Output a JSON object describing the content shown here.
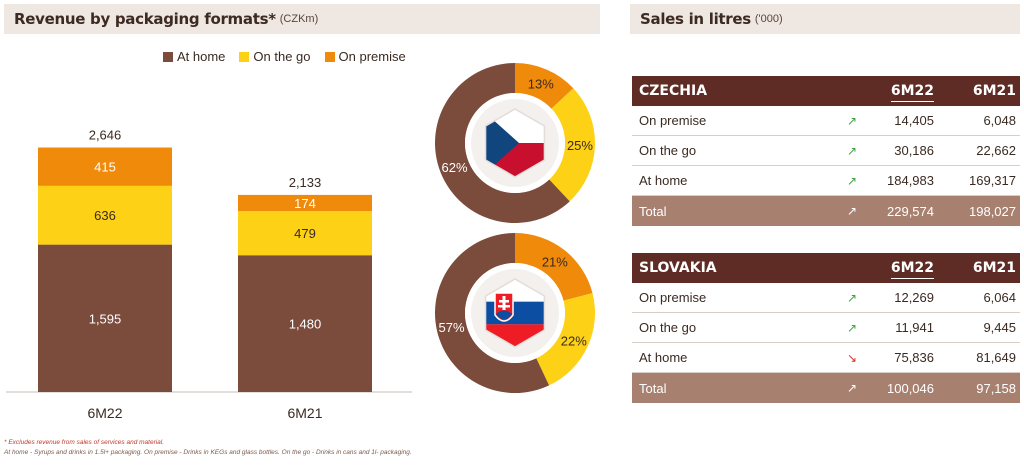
{
  "left_panel": {
    "title": "Revenue by packaging formats*",
    "unit": "(CZKm)"
  },
  "right_panel": {
    "title": "Sales in litres",
    "unit": "('000)"
  },
  "colors": {
    "at_home": "#7b4b3c",
    "on_the_go": "#fcd116",
    "on_premise": "#f08a0a",
    "table_head": "#5e2c24",
    "table_total": "#a8806f"
  },
  "legend": [
    {
      "label": "At home",
      "color": "#7b4b3c"
    },
    {
      "label": "On the go",
      "color": "#fcd116"
    },
    {
      "label": "On premise",
      "color": "#f08a0a"
    }
  ],
  "chart_data": [
    {
      "type": "bar",
      "stacked": true,
      "categories": [
        "6M22",
        "6M21"
      ],
      "series": [
        {
          "name": "At home",
          "values": [
            1595,
            1480
          ],
          "labels": [
            "1,595",
            "1,480"
          ]
        },
        {
          "name": "On the go",
          "values": [
            636,
            479
          ],
          "labels": [
            "636",
            "479"
          ]
        },
        {
          "name": "On premise",
          "values": [
            415,
            174
          ],
          "labels": [
            "415",
            "174"
          ]
        }
      ],
      "totals": [
        2646,
        2133
      ],
      "total_labels": [
        "2,646",
        "2,133"
      ]
    },
    {
      "type": "pie",
      "country": "Czechia",
      "slices": [
        {
          "name": "On premise",
          "value": 13,
          "label": "13%"
        },
        {
          "name": "On the go",
          "value": 25,
          "label": "25%"
        },
        {
          "name": "At home",
          "value": 62,
          "label": "62%"
        }
      ]
    },
    {
      "type": "pie",
      "country": "Slovakia",
      "slices": [
        {
          "name": "On premise",
          "value": 21,
          "label": "21%"
        },
        {
          "name": "On the go",
          "value": 22,
          "label": "22%"
        },
        {
          "name": "At home",
          "value": 57,
          "label": "57%"
        }
      ]
    }
  ],
  "tables": {
    "czechia": {
      "title": "CZECHIA",
      "col1": "6M22",
      "col2": "6M21",
      "rows": [
        {
          "label": "On premise",
          "trend": "up",
          "v1": "14,405",
          "v2": "6,048"
        },
        {
          "label": "On the go",
          "trend": "up",
          "v1": "30,186",
          "v2": "22,662"
        },
        {
          "label": "At home",
          "trend": "up",
          "v1": "184,983",
          "v2": "169,317"
        }
      ],
      "total": {
        "label": "Total",
        "trend": "up",
        "v1": "229,574",
        "v2": "198,027"
      }
    },
    "slovakia": {
      "title": "SLOVAKIA",
      "col1": "6M22",
      "col2": "6M21",
      "rows": [
        {
          "label": "On premise",
          "trend": "up",
          "v1": "12,269",
          "v2": "6,064"
        },
        {
          "label": "On the go",
          "trend": "up",
          "v1": "11,941",
          "v2": "9,445"
        },
        {
          "label": "At home",
          "trend": "down",
          "v1": "75,836",
          "v2": "81,649"
        }
      ],
      "total": {
        "label": "Total",
        "trend": "up",
        "v1": "100,046",
        "v2": "97,158"
      }
    }
  },
  "footnotes": [
    "* Excludes revenue from sales of services and material.",
    "At home - Syrups and drinks in 1.5l+ packaging. On premise - Drinks in KEGs and glass bottles. On the go - Drinks in cans and 1l- packaging."
  ]
}
